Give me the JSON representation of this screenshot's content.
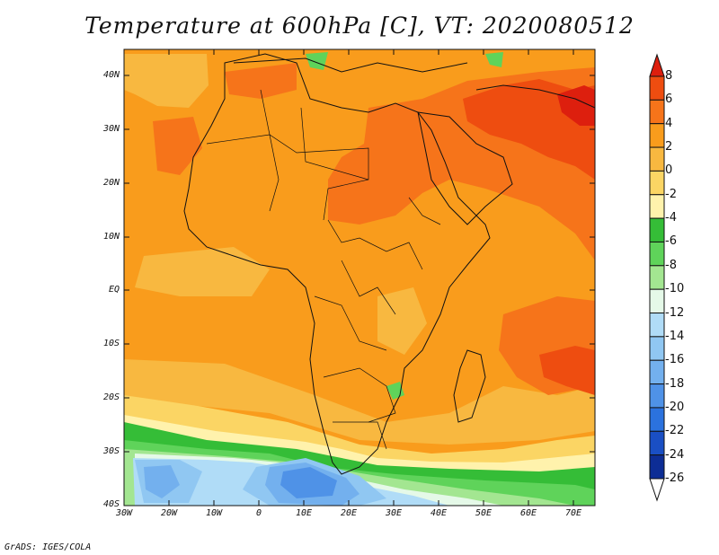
{
  "title": "Temperature at 600hPa [C], VT: 2020080512",
  "credit": "GrADS: IGES/COLA",
  "axes": {
    "lat_labels": [
      "40N",
      "30N",
      "20N",
      "10N",
      "EQ",
      "10S",
      "20S",
      "30S",
      "40S"
    ],
    "lon_labels": [
      "30W",
      "20W",
      "10W",
      "0",
      "10E",
      "20E",
      "30E",
      "40E",
      "50E",
      "60E",
      "70E"
    ]
  },
  "colorbar": {
    "labels": [
      "8",
      "6",
      "4",
      "2",
      "0",
      "-2",
      "-4",
      "-6",
      "-8",
      "-10",
      "-12",
      "-14",
      "-16",
      "-18",
      "-20",
      "-22",
      "-24",
      "-26"
    ],
    "colors": [
      "#dd1f0e",
      "#ee4d10",
      "#f6741a",
      "#f99c1c",
      "#f8b840",
      "#fbd564",
      "#fff2ac",
      "#35bd37",
      "#5fd35a",
      "#a3e691",
      "#e5f9e8",
      "#b0dcf7",
      "#90c7f2",
      "#73b0ee",
      "#4f92e7",
      "#2b72de",
      "#1a4fc4",
      "#0d2d95",
      "#0a186a"
    ]
  },
  "icons": [
    "map-grid",
    "colorbar-arrow-icon"
  ]
}
